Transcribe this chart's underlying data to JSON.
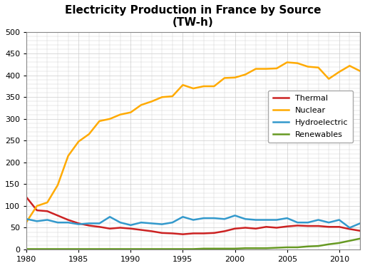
{
  "title_line1": "Electricity Production in France by Source",
  "title_line2": "(TW-h)",
  "years": [
    1980,
    1981,
    1982,
    1983,
    1984,
    1985,
    1986,
    1987,
    1988,
    1989,
    1990,
    1991,
    1992,
    1993,
    1994,
    1995,
    1996,
    1997,
    1998,
    1999,
    2000,
    2001,
    2002,
    2003,
    2004,
    2005,
    2006,
    2007,
    2008,
    2009,
    2010,
    2011,
    2012
  ],
  "thermal": [
    120,
    90,
    88,
    78,
    68,
    60,
    55,
    52,
    48,
    50,
    48,
    45,
    42,
    38,
    37,
    35,
    37,
    37,
    38,
    42,
    48,
    50,
    48,
    52,
    50,
    53,
    55,
    54,
    54,
    52,
    52,
    47,
    43
  ],
  "nuclear": [
    63,
    100,
    108,
    148,
    215,
    248,
    265,
    295,
    300,
    310,
    315,
    332,
    340,
    350,
    352,
    378,
    370,
    375,
    375,
    394,
    395,
    402,
    415,
    415,
    416,
    430,
    428,
    420,
    418,
    392,
    408,
    422,
    410
  ],
  "hydro": [
    70,
    65,
    68,
    62,
    62,
    58,
    60,
    60,
    75,
    62,
    56,
    62,
    60,
    58,
    62,
    75,
    68,
    72,
    72,
    70,
    78,
    70,
    68,
    68,
    68,
    72,
    62,
    62,
    68,
    62,
    68,
    50,
    60
  ],
  "renewables": [
    1,
    1,
    1,
    1,
    1,
    1,
    1,
    1,
    1,
    1,
    1,
    1,
    1,
    1,
    1,
    1,
    1,
    2,
    2,
    2,
    2,
    3,
    3,
    3,
    4,
    5,
    5,
    7,
    8,
    12,
    15,
    20,
    25
  ],
  "thermal_color": "#cc2222",
  "nuclear_color": "#ffaa00",
  "hydro_color": "#3399cc",
  "renewables_color": "#669922",
  "bg_color": "#ffffff",
  "plot_bg_color": "#ffffff",
  "grid_color": "#cccccc",
  "ylim": [
    0,
    500
  ],
  "xlim": [
    1980,
    2012
  ],
  "yticks": [
    0,
    50,
    100,
    150,
    200,
    250,
    300,
    350,
    400,
    450,
    500
  ],
  "xticks": [
    1980,
    1985,
    1990,
    1995,
    2000,
    2005,
    2010
  ],
  "legend_labels": [
    "Thermal",
    "Nuclear",
    "Hydroelectric",
    "Renewables"
  ],
  "linewidth": 1.8
}
